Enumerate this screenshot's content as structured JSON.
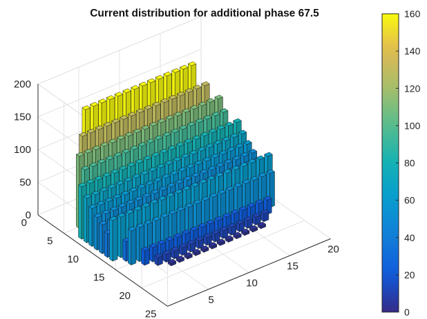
{
  "chart_data": {
    "type": "bar3d",
    "title": "Current distribution for additional phase 67.5",
    "xlabel": "",
    "ylabel": "",
    "zlabel": "",
    "x_range": [
      0,
      20
    ],
    "y_range": [
      0,
      25
    ],
    "z_range": [
      0,
      200
    ],
    "x_ticks": [
      "5",
      "10",
      "15",
      "20"
    ],
    "y_ticks": [
      "0",
      "5",
      "10",
      "15",
      "20",
      "25"
    ],
    "z_ticks": [
      "0",
      "50",
      "100",
      "150",
      "200"
    ],
    "colorbar": {
      "range": [
        0,
        160
      ],
      "ticks": [
        "0",
        "20",
        "40",
        "60",
        "80",
        "100",
        "120",
        "140",
        "160"
      ],
      "colormap": "parula"
    },
    "grid": true,
    "shape": "circular array of element bars, rows along y from 3 to 18, columns along x",
    "rows": [
      {
        "y": 3,
        "x_start": 4,
        "x_end": 17,
        "value": 160
      },
      {
        "y": 4,
        "x_start": 3,
        "x_end": 18,
        "value": 130
      },
      {
        "y": 5,
        "x_start": 2,
        "x_end": 19,
        "value": 110
      },
      {
        "y": 6,
        "x_start": 2,
        "x_end": 19,
        "value": 95
      },
      {
        "y": 7,
        "x_start": 1,
        "x_end": 20,
        "value": 80
      },
      {
        "y": 8,
        "x_start": 1,
        "x_end": 20,
        "value": 68
      },
      {
        "y": 9,
        "x_start": 1,
        "x_end": 20,
        "value": 58
      },
      {
        "y": 10,
        "x_start": 1,
        "x_end": 20,
        "value": 50
      },
      {
        "y": 11,
        "x_start": 1,
        "x_end": 20,
        "value": 44
      },
      {
        "y": 12,
        "x_start": 1,
        "x_end": 20,
        "value": 36
      },
      {
        "y": 13,
        "x_start": 1,
        "x_end": 20,
        "value": 62
      },
      {
        "y": 14,
        "x_start": 2,
        "x_end": 19,
        "value": 30
      },
      {
        "y": 15,
        "x_start": 2,
        "x_end": 19,
        "value": 52
      },
      {
        "y": 16,
        "x_start": 3,
        "x_end": 18,
        "value": 22
      },
      {
        "y": 17,
        "x_start": 4,
        "x_end": 17,
        "value": 12
      },
      {
        "y": 18,
        "x_start": 5,
        "x_end": 16,
        "value": 4
      }
    ]
  }
}
